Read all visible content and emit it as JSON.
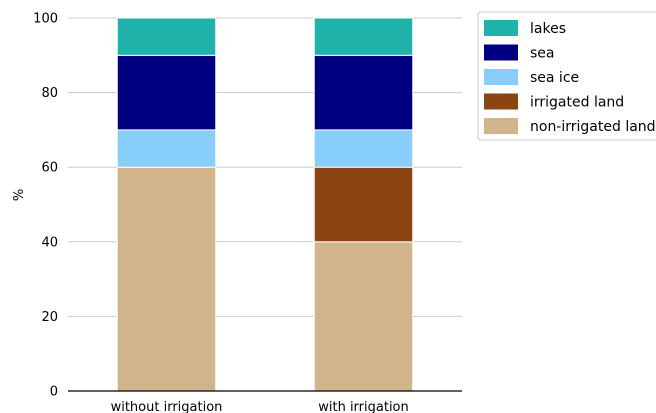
{
  "chart_data": {
    "type": "bar",
    "stacked": true,
    "title": "",
    "xlabel": "",
    "ylabel": "%",
    "ylim": [
      0,
      100
    ],
    "yticks": [
      0,
      20,
      40,
      60,
      80,
      100
    ],
    "grid": "horizontal",
    "legend_position": "top-right",
    "categories": [
      "without irrigation",
      "with irrigation"
    ],
    "series": [
      {
        "name": "non-irrigated land",
        "color": "#D2B48C",
        "values": [
          60,
          40
        ]
      },
      {
        "name": "irrigated land",
        "color": "#8B4513",
        "values": [
          0,
          20
        ]
      },
      {
        "name": "sea ice",
        "color": "#87CEFA",
        "values": [
          10,
          10
        ]
      },
      {
        "name": "sea",
        "color": "#000080",
        "values": [
          20,
          20
        ]
      },
      {
        "name": "lakes",
        "color": "#20B2AA",
        "values": [
          10,
          10
        ]
      }
    ]
  }
}
